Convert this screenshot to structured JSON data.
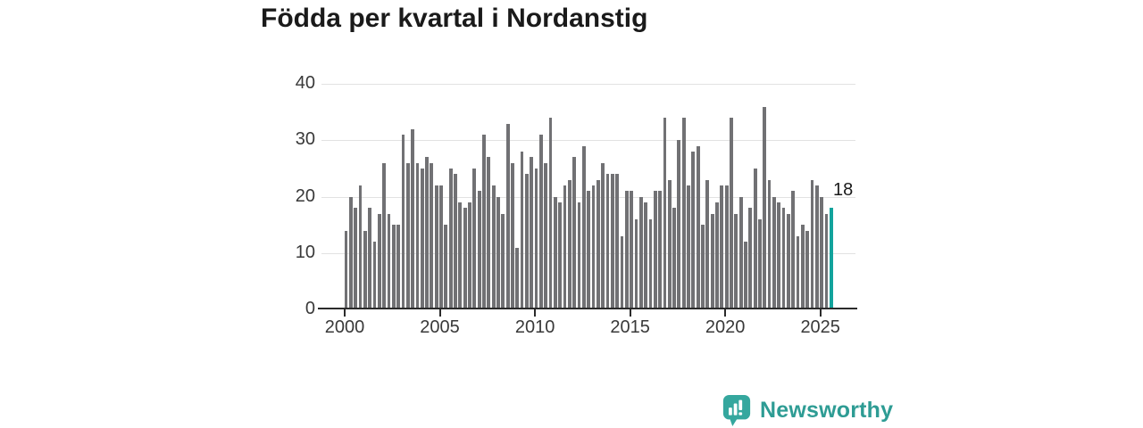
{
  "header": {
    "title": "Födda per kvartal i Nordanstig"
  },
  "footer": {
    "brand": "Newsworthy"
  },
  "colors": {
    "bar": "#717174",
    "highlight": "#12a39c",
    "axis": "#2b2b2b",
    "gridline": "#e2e2e2",
    "brand_teal": "#2e9c94",
    "title_text": "#1a1a1a"
  },
  "icons": [
    {
      "name": "newsworthy-logo-icon",
      "description": "teal speech-bubble with white bar-chart and exclamation glyph"
    }
  ],
  "chart_data": {
    "type": "bar",
    "title": "Födda per kvartal i Nordanstig",
    "xlabel": "",
    "ylabel": "",
    "frequency": "quarterly",
    "x_start": "2000-Q1",
    "x_end": "2025-Q3",
    "grid": true,
    "legend": false,
    "ylim": [
      0,
      40
    ],
    "yticks": [
      0,
      10,
      20,
      30,
      40
    ],
    "xticks": [
      2000,
      2005,
      2010,
      2015,
      2020,
      2025
    ],
    "categories": [
      "2000-Q1",
      "2000-Q2",
      "2000-Q3",
      "2000-Q4",
      "2001-Q1",
      "2001-Q2",
      "2001-Q3",
      "2001-Q4",
      "2002-Q1",
      "2002-Q2",
      "2002-Q3",
      "2002-Q4",
      "2003-Q1",
      "2003-Q2",
      "2003-Q3",
      "2003-Q4",
      "2004-Q1",
      "2004-Q2",
      "2004-Q3",
      "2004-Q4",
      "2005-Q1",
      "2005-Q2",
      "2005-Q3",
      "2005-Q4",
      "2006-Q1",
      "2006-Q2",
      "2006-Q3",
      "2006-Q4",
      "2007-Q1",
      "2007-Q2",
      "2007-Q3",
      "2007-Q4",
      "2008-Q1",
      "2008-Q2",
      "2008-Q3",
      "2008-Q4",
      "2009-Q1",
      "2009-Q2",
      "2009-Q3",
      "2009-Q4",
      "2010-Q1",
      "2010-Q2",
      "2010-Q3",
      "2010-Q4",
      "2011-Q1",
      "2011-Q2",
      "2011-Q3",
      "2011-Q4",
      "2012-Q1",
      "2012-Q2",
      "2012-Q3",
      "2012-Q4",
      "2013-Q1",
      "2013-Q2",
      "2013-Q3",
      "2013-Q4",
      "2014-Q1",
      "2014-Q2",
      "2014-Q3",
      "2014-Q4",
      "2015-Q1",
      "2015-Q2",
      "2015-Q3",
      "2015-Q4",
      "2016-Q1",
      "2016-Q2",
      "2016-Q3",
      "2016-Q4",
      "2017-Q1",
      "2017-Q2",
      "2017-Q3",
      "2017-Q4",
      "2018-Q1",
      "2018-Q2",
      "2018-Q3",
      "2018-Q4",
      "2019-Q1",
      "2019-Q2",
      "2019-Q3",
      "2019-Q4",
      "2020-Q1",
      "2020-Q2",
      "2020-Q3",
      "2020-Q4",
      "2021-Q1",
      "2021-Q2",
      "2021-Q3",
      "2021-Q4",
      "2022-Q1",
      "2022-Q2",
      "2022-Q3",
      "2022-Q4",
      "2023-Q1",
      "2023-Q2",
      "2023-Q3",
      "2023-Q4",
      "2024-Q1",
      "2024-Q2",
      "2024-Q3",
      "2024-Q4",
      "2025-Q1",
      "2025-Q2",
      "2025-Q3"
    ],
    "values": [
      14,
      20,
      18,
      22,
      14,
      18,
      12,
      17,
      26,
      17,
      15,
      15,
      31,
      26,
      32,
      26,
      25,
      27,
      26,
      22,
      22,
      15,
      25,
      24,
      19,
      18,
      19,
      25,
      21,
      31,
      27,
      22,
      20,
      17,
      33,
      26,
      11,
      28,
      24,
      27,
      25,
      31,
      26,
      34,
      20,
      19,
      22,
      23,
      27,
      19,
      29,
      21,
      22,
      23,
      26,
      24,
      24,
      24,
      13,
      21,
      21,
      16,
      20,
      19,
      16,
      21,
      21,
      34,
      23,
      18,
      30,
      34,
      22,
      28,
      29,
      15,
      23,
      17,
      19,
      22,
      22,
      34,
      17,
      20,
      12,
      18,
      25,
      16,
      36,
      23,
      20,
      19,
      18,
      17,
      21,
      13,
      15,
      14,
      23,
      22,
      20,
      17,
      18
    ],
    "highlight_index": 102,
    "annotation": {
      "text": "18",
      "target": "2025-Q3"
    }
  }
}
